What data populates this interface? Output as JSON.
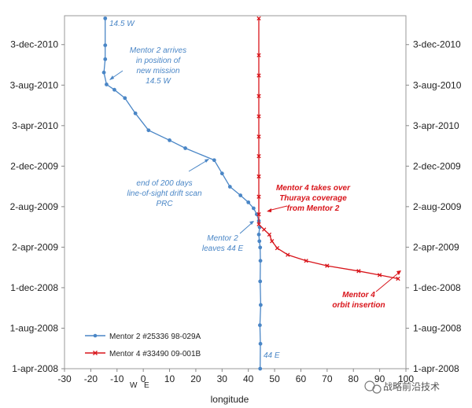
{
  "chart_data": {
    "type": "scatter",
    "title": "",
    "xlabel": "longitude",
    "ylabel": "",
    "xlim": [
      -30,
      100
    ],
    "ylim": [
      "2008-04-01",
      "2011-02-28"
    ],
    "x_ticks": [
      "-30",
      "-20",
      "-10",
      "0",
      "10",
      "20",
      "30",
      "40",
      "50",
      "60",
      "70",
      "80",
      "90",
      "100"
    ],
    "y_ticks": [
      "1-apr-2008",
      "1-aug-2008",
      "1-dec-2008",
      "2-apr-2009",
      "2-aug-2009",
      "2-dec-2009",
      "3-apr-2010",
      "3-aug-2010",
      "3-dec-2010"
    ],
    "y_tick_dates": [
      "2008-04-01",
      "2008-08-01",
      "2008-12-01",
      "2009-04-02",
      "2009-08-02",
      "2009-12-02",
      "2010-04-03",
      "2010-08-03",
      "2010-12-03"
    ],
    "x_sublabels": {
      "W": "W",
      "E": "E"
    },
    "grid": false,
    "legend_position": "bottom-left",
    "series": [
      {
        "name": "Mentor 2 #25336  98-029A",
        "color": "#4a86c6",
        "marker": "circle",
        "points": [
          {
            "x": 44.5,
            "y": "2008-04-01"
          },
          {
            "x": 44.6,
            "y": "2008-06-15"
          },
          {
            "x": 44.4,
            "y": "2008-08-10"
          },
          {
            "x": 44.7,
            "y": "2008-10-10"
          },
          {
            "x": 44.5,
            "y": "2008-12-20"
          },
          {
            "x": 44.6,
            "y": "2009-02-20"
          },
          {
            "x": 44.5,
            "y": "2009-04-01"
          },
          {
            "x": 44.2,
            "y": "2009-04-20"
          },
          {
            "x": 44.0,
            "y": "2009-05-10"
          },
          {
            "x": 44.3,
            "y": "2009-06-01"
          },
          {
            "x": 44.0,
            "y": "2009-06-20"
          },
          {
            "x": 43.2,
            "y": "2009-07-10"
          },
          {
            "x": 42.0,
            "y": "2009-07-28"
          },
          {
            "x": 40.0,
            "y": "2009-08-15"
          },
          {
            "x": 37.0,
            "y": "2009-09-05"
          },
          {
            "x": 33.0,
            "y": "2009-10-01"
          },
          {
            "x": 30.0,
            "y": "2009-11-10"
          },
          {
            "x": 27.0,
            "y": "2009-12-20"
          },
          {
            "x": 16.0,
            "y": "2010-01-25"
          },
          {
            "x": 10.0,
            "y": "2010-02-18"
          },
          {
            "x": 2.0,
            "y": "2010-03-20"
          },
          {
            "x": -3.0,
            "y": "2010-05-10"
          },
          {
            "x": -7.0,
            "y": "2010-06-25"
          },
          {
            "x": -11.0,
            "y": "2010-07-20"
          },
          {
            "x": -14.0,
            "y": "2010-08-05"
          },
          {
            "x": -15.0,
            "y": "2010-09-10"
          },
          {
            "x": -14.5,
            "y": "2010-10-20"
          },
          {
            "x": -14.5,
            "y": "2010-12-01"
          },
          {
            "x": -14.5,
            "y": "2011-02-20"
          }
        ]
      },
      {
        "name": "Mentor 4 #33490  09-001B",
        "color": "#d8141a",
        "marker": "x",
        "points": [
          {
            "x": 97.0,
            "y": "2008-12-28"
          },
          {
            "x": 90.0,
            "y": "2009-01-08"
          },
          {
            "x": 82.0,
            "y": "2009-01-20"
          },
          {
            "x": 70.0,
            "y": "2009-02-05"
          },
          {
            "x": 62.0,
            "y": "2009-02-20"
          },
          {
            "x": 55.0,
            "y": "2009-03-10"
          },
          {
            "x": 51.0,
            "y": "2009-03-30"
          },
          {
            "x": 49.0,
            "y": "2009-04-20"
          },
          {
            "x": 48.0,
            "y": "2009-05-10"
          },
          {
            "x": 46.0,
            "y": "2009-05-25"
          },
          {
            "x": 44.0,
            "y": "2009-06-10"
          },
          {
            "x": 44.0,
            "y": "2009-07-10"
          },
          {
            "x": 44.0,
            "y": "2009-09-01"
          },
          {
            "x": 44.0,
            "y": "2009-11-01"
          },
          {
            "x": 44.0,
            "y": "2010-01-01"
          },
          {
            "x": 44.0,
            "y": "2010-03-01"
          },
          {
            "x": 44.0,
            "y": "2010-05-01"
          },
          {
            "x": 44.0,
            "y": "2010-07-01"
          },
          {
            "x": 44.0,
            "y": "2010-09-01"
          },
          {
            "x": 44.0,
            "y": "2010-11-01"
          },
          {
            "x": 44.0,
            "y": "2011-02-20"
          }
        ]
      }
    ],
    "annotations": [
      {
        "text": "14.5 W",
        "style": "blue"
      },
      {
        "text": "Mentor 2 arrives",
        "style": "blue"
      },
      {
        "text": "in position of",
        "style": "blue"
      },
      {
        "text": "new mission",
        "style": "blue"
      },
      {
        "text": "14.5 W",
        "style": "blue"
      },
      {
        "text": "end of 200 days",
        "style": "blue"
      },
      {
        "text": "line-of-sight drift scan",
        "style": "blue"
      },
      {
        "text": "PRC",
        "style": "blue"
      },
      {
        "text": "Mentor 2",
        "style": "blue"
      },
      {
        "text": "leaves 44 E",
        "style": "blue"
      },
      {
        "text": "Mentor 4 takes over",
        "style": "red"
      },
      {
        "text": "Thuraya coverage",
        "style": "red"
      },
      {
        "text": "from Mentor 2",
        "style": "red"
      },
      {
        "text": "Mentor 4",
        "style": "red"
      },
      {
        "text": "orbit insertion",
        "style": "red"
      },
      {
        "text": "44 E",
        "style": "blue"
      }
    ]
  },
  "watermark": "战略前沿技术",
  "colors": {
    "mentor2": "#4a86c6",
    "mentor4": "#d8141a",
    "axis": "#888888"
  }
}
